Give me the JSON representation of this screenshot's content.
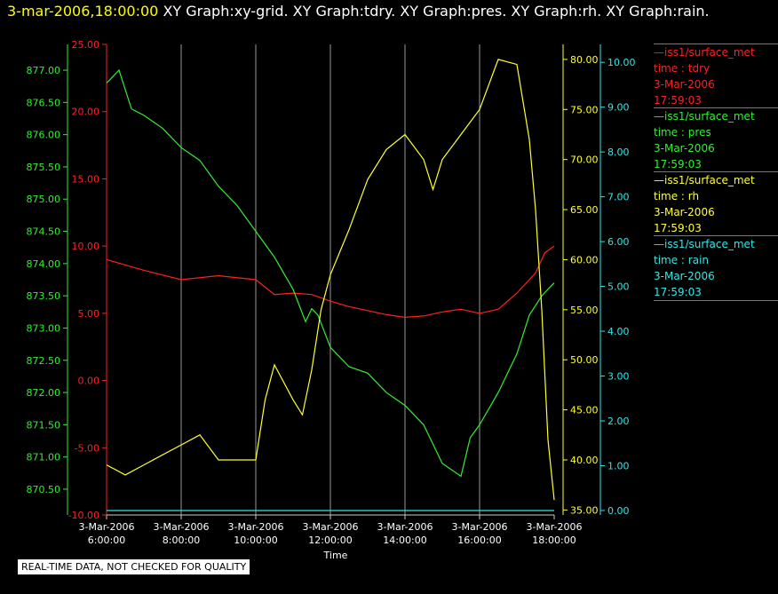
{
  "header": {
    "timestamp": "3-mar-2006,18:00:00",
    "titles": [
      "XY Graph:xy-grid.",
      "XY Graph:tdry.",
      "XY Graph:pres.",
      "XY Graph:rh.",
      "XY Graph:rain."
    ]
  },
  "legend": [
    {
      "line": "—iss1/surface_met",
      "field": "time : tdry",
      "date": "3-Mar-2006",
      "time": "17:59:03",
      "color": "#ff2020"
    },
    {
      "line": "—iss1/surface_met",
      "field": "time : pres",
      "date": "3-Mar-2006",
      "time": "17:59:03",
      "color": "#33ee33"
    },
    {
      "line": "—iss1/surface_met",
      "field": "time : rh",
      "date": "3-Mar-2006",
      "time": "17:59:03",
      "color": "#ffff33"
    },
    {
      "line": "—iss1/surface_met",
      "field": "time : rain",
      "date": "3-Mar-2006",
      "time": "17:59:03",
      "color": "#33e6e6"
    }
  ],
  "status_text": "REAL-TIME DATA, NOT CHECKED FOR QUALITY",
  "chart_data": {
    "type": "line",
    "xlabel": "Time",
    "x_ticks": [
      "3-Mar-2006 6:00:00",
      "3-Mar-2006 8:00:00",
      "3-Mar-2006 10:00:00",
      "3-Mar-2006 12:00:00",
      "3-Mar-2006 14:00:00",
      "3-Mar-2006 16:00:00",
      "3-Mar-2006 18:00:00"
    ],
    "xlim": [
      "06:00",
      "18:00"
    ],
    "grid": true,
    "axes": [
      {
        "id": "tdry",
        "color": "#ff2020",
        "ylim": [
          -10,
          25
        ],
        "ticks": [
          "-10.00",
          "-5.00",
          "0.00",
          "5.00",
          "10.00",
          "15.00",
          "20.00",
          "25.00"
        ]
      },
      {
        "id": "pres",
        "color": "#33ee33",
        "ylim": [
          870.1,
          877.4
        ],
        "ticks": [
          "870.50",
          "871.00",
          "871.50",
          "872.00",
          "872.50",
          "873.00",
          "873.50",
          "874.00",
          "874.50",
          "875.00",
          "875.50",
          "876.00",
          "876.50",
          "877.00"
        ]
      },
      {
        "id": "rh",
        "color": "#ffff33",
        "ylim": [
          34.5,
          81.5
        ],
        "ticks": [
          "35.00",
          "40.00",
          "45.00",
          "50.00",
          "55.00",
          "60.00",
          "65.00",
          "70.00",
          "75.00",
          "80.00"
        ]
      },
      {
        "id": "rain",
        "color": "#33e6e6",
        "ylim": [
          -0.1,
          10.4
        ],
        "ticks": [
          "0.00",
          "1.00",
          "2.00",
          "3.00",
          "4.00",
          "5.00",
          "6.00",
          "7.00",
          "8.00",
          "9.00",
          "10.00"
        ]
      }
    ],
    "series": [
      {
        "axis": "tdry",
        "color": "#ff2020",
        "x": [
          "06:00",
          "07:00",
          "08:00",
          "09:00",
          "10:00",
          "10:30",
          "11:00",
          "11:30",
          "12:00",
          "12:30",
          "13:00",
          "13:30",
          "14:00",
          "14:30",
          "15:00",
          "15:30",
          "16:00",
          "16:30",
          "17:00",
          "17:30",
          "17:45",
          "18:00"
        ],
        "y": [
          9.0,
          8.2,
          7.5,
          7.8,
          7.5,
          6.4,
          6.5,
          6.4,
          5.9,
          5.5,
          5.2,
          4.9,
          4.7,
          4.8,
          5.1,
          5.3,
          5.0,
          5.3,
          6.5,
          8.0,
          9.5,
          10.0
        ]
      },
      {
        "axis": "pres",
        "color": "#33ee33",
        "x": [
          "06:00",
          "06:20",
          "06:40",
          "07:00",
          "07:30",
          "08:00",
          "08:30",
          "09:00",
          "09:30",
          "10:00",
          "10:30",
          "11:00",
          "11:20",
          "11:30",
          "11:40",
          "12:00",
          "12:30",
          "13:00",
          "13:30",
          "14:00",
          "14:30",
          "15:00",
          "15:30",
          "15:45",
          "16:00",
          "16:30",
          "17:00",
          "17:20",
          "17:40",
          "18:00"
        ],
        "y": [
          876.8,
          877.0,
          876.4,
          876.3,
          876.1,
          875.8,
          875.6,
          875.2,
          874.9,
          874.5,
          874.1,
          873.6,
          873.1,
          873.3,
          873.2,
          872.7,
          872.4,
          872.3,
          872.0,
          871.8,
          871.5,
          870.9,
          870.7,
          871.3,
          871.5,
          872.0,
          872.6,
          873.2,
          873.5,
          873.7
        ]
      },
      {
        "axis": "rh",
        "color": "#ffff33",
        "x": [
          "06:00",
          "06:30",
          "07:00",
          "07:30",
          "08:00",
          "08:30",
          "09:00",
          "09:30",
          "10:00",
          "10:15",
          "10:30",
          "11:00",
          "11:15",
          "11:30",
          "11:45",
          "12:00",
          "12:30",
          "13:00",
          "13:30",
          "14:00",
          "14:30",
          "14:45",
          "15:00",
          "15:30",
          "16:00",
          "16:30",
          "17:00",
          "17:20",
          "17:30",
          "17:40",
          "17:50",
          "18:00"
        ],
        "y": [
          39.5,
          38.5,
          39.5,
          40.5,
          41.5,
          42.5,
          40.0,
          40.0,
          40.0,
          46.0,
          49.5,
          46.0,
          44.5,
          49.0,
          55.0,
          58.5,
          63.0,
          68.0,
          71.0,
          72.5,
          70.0,
          67.0,
          70.0,
          72.5,
          75.0,
          80.0,
          79.5,
          72.0,
          65.0,
          55.0,
          42.0,
          36.0
        ]
      },
      {
        "axis": "rain",
        "color": "#33e6e6",
        "x": [
          "06:00",
          "18:00"
        ],
        "y": [
          0.0,
          0.0
        ]
      }
    ]
  }
}
